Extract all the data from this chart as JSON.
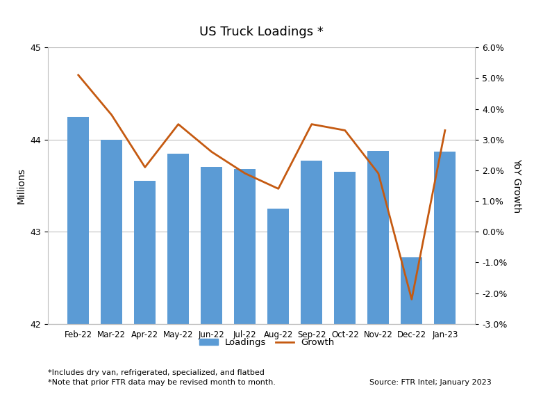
{
  "title": "US Truck Loadings *",
  "categories": [
    "Feb-22",
    "Mar-22",
    "Apr-22",
    "May-22",
    "Jun-22",
    "Jul-22",
    "Aug-22",
    "Sep-22",
    "Oct-22",
    "Nov-22",
    "Dec-22",
    "Jan-23"
  ],
  "loadings": [
    44.25,
    44.0,
    43.55,
    43.85,
    43.7,
    43.68,
    43.25,
    43.77,
    43.65,
    43.88,
    42.72,
    43.87
  ],
  "growth": [
    0.051,
    0.038,
    0.021,
    0.035,
    0.026,
    0.019,
    0.014,
    0.035,
    0.033,
    0.019,
    -0.022,
    0.033
  ],
  "bar_color": "#5B9BD5",
  "line_color": "#C55A11",
  "ylabel_left": "Millions",
  "ylabel_right": "YoY Growth",
  "ylim_left": [
    42,
    45
  ],
  "ylim_right": [
    -0.03,
    0.06
  ],
  "footnote1": "*Includes dry van, refrigerated, specialized, and flatbed",
  "footnote2": "*Note that prior FTR data may be revised month to month.",
  "source": "Source: FTR Intel; January 2023",
  "background_color": "#FFFFFF",
  "grid_color": "#BFBFBF",
  "legend_loadings": "Loadings",
  "legend_growth": "Growth"
}
